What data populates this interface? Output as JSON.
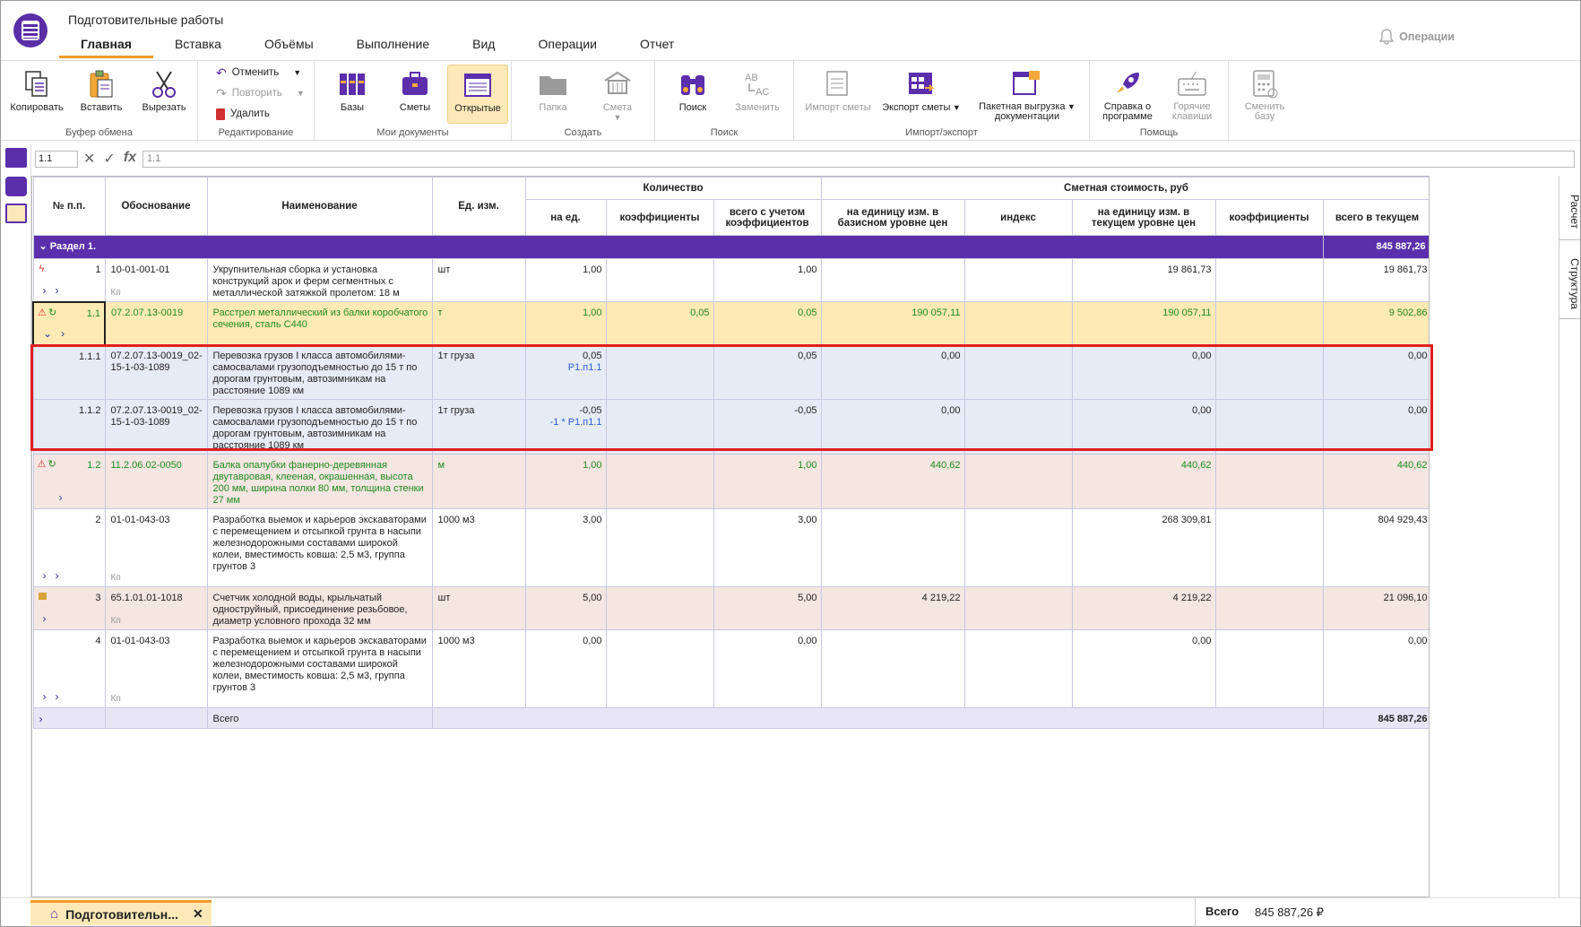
{
  "window": {
    "title": "Подготовительные работы"
  },
  "tabs": [
    "Главная",
    "Вставка",
    "Объёмы",
    "Выполнение",
    "Вид",
    "Операции",
    "Отчет"
  ],
  "operations_label": "Операции",
  "ribbon": {
    "clipboard": {
      "label": "Буфер обмена",
      "copy": "Копировать",
      "paste": "Вставить",
      "cut": "Вырезать"
    },
    "edit": {
      "label": "Редактирование",
      "undo": "Отменить",
      "redo": "Повторить",
      "delete": "Удалить"
    },
    "mydocs": {
      "label": "Мои документы",
      "bases": "Базы",
      "estimates": "Сметы",
      "open": "Открытые"
    },
    "create": {
      "label": "Создать",
      "folder": "Папка",
      "estimate": "Смета"
    },
    "search": {
      "label": "Поиск",
      "find": "Поиск",
      "replace": "Заменить"
    },
    "io": {
      "label": "Импорт/экспорт",
      "import": "Импорт сметы",
      "export": "Экспорт сметы",
      "batch1": "Пакетная выгрузка",
      "batch2": "документации"
    },
    "help": {
      "label": "Помощь",
      "about1": "Справка о",
      "about2": "программе",
      "hot1": "Горячие",
      "hot2": "клавиши"
    },
    "change_base1": "Сменить",
    "change_base2": "базу"
  },
  "formula": {
    "cell": "1.1",
    "value": "1.1"
  },
  "side_tabs": {
    "calc": "Расчет",
    "structure": "Структура"
  },
  "headers": {
    "num": "№ п.п.",
    "basis": "Обоснование",
    "name": "Наименование",
    "unit": "Ед. изм.",
    "qty_group": "Количество",
    "cost_group": "Сметная стоимость, руб",
    "per_unit": "на ед.",
    "coef": "коэффициенты",
    "total_coef": "всего с учетом коэффициентов",
    "base_price": "на единицу изм. в базисном уровне цен",
    "index": "индекс",
    "cur_price": "на единицу изм. в текущем уровне цен",
    "coef2": "коэффициенты",
    "total_cur": "всего в текущем"
  },
  "section": {
    "label": "Раздел 1.",
    "total": "845 887,26"
  },
  "rows": [
    {
      "num": "1",
      "basis": "10-01-001-01",
      "name": "Укрупнительная сборка и установка конструкций арок и ферм сегментных с металлической затяжкой пролетом: 18 м",
      "unit": "шт",
      "per_unit": "1,00",
      "coef": "",
      "total_coef": "1,00",
      "base": "",
      "index": "",
      "cur": "19 861,73",
      "coef2": "",
      "total": "19 861,73"
    },
    {
      "num": "1.1",
      "basis": "07.2.07.13-0019",
      "name": "Расстрел металлический из балки коробчатого сечения, сталь С440",
      "unit": "т",
      "per_unit": "1,00",
      "coef": "0,05",
      "total_coef": "0,05",
      "base": "190 057,11",
      "index": "",
      "cur": "190 057,11",
      "coef2": "",
      "total": "9 502,86"
    },
    {
      "num": "1.1.1",
      "basis": "07.2.07.13-0019_02-15-1-03-1089",
      "name": "Перевозка грузов I класса автомобилями-самосвалами грузоподъемностью до 15 т по дорогам грунтовым, автозимникам на расстояние 1089 км",
      "unit": "1т груза",
      "per_unit": "0,05",
      "per_unit2": "Р1.п1.1",
      "coef": "",
      "total_coef": "0,05",
      "base": "0,00",
      "index": "",
      "cur": "0,00",
      "coef2": "",
      "total": "0,00"
    },
    {
      "num": "1.1.2",
      "basis": "07.2.07.13-0019_02-15-1-03-1089",
      "name": "Перевозка грузов I класса автомобилями-самосвалами грузоподъемностью до 15 т по дорогам грунтовым, автозимникам на расстояние 1089 км",
      "unit": "1т груза",
      "per_unit": "-0,05",
      "per_unit2": "-1 * Р1.п1.1",
      "coef": "",
      "total_coef": "-0,05",
      "base": "0,00",
      "index": "",
      "cur": "0,00",
      "coef2": "",
      "total": "0,00"
    },
    {
      "num": "1.2",
      "basis": "11.2.06.02-0050",
      "name": "Балка опалубки фанерно-деревянная двутавровая, клееная, окрашенная, высота 200 мм, ширина полки 80 мм, толщина стенки 27 мм",
      "unit": "м",
      "per_unit": "1,00",
      "coef": "",
      "total_coef": "1,00",
      "base": "440,62",
      "index": "",
      "cur": "440,62",
      "coef2": "",
      "total": "440,62"
    },
    {
      "num": "2",
      "basis": "01-01-043-03",
      "name": "Разработка выемок и карьеров экскаваторами с перемещением и отсыпкой грунта в насыпи железнодорожными составами широкой колеи, вместимость ковша: 2,5 м3, группа грунтов 3",
      "unit": "1000 м3",
      "per_unit": "3,00",
      "coef": "",
      "total_coef": "3,00",
      "base": "",
      "index": "",
      "cur": "268 309,81",
      "coef2": "",
      "total": "804 929,43"
    },
    {
      "num": "3",
      "basis": "65.1.01.01-1018",
      "name": "Счетчик холодной воды, крыльчатый одноструйный, присоединение резьбовое, диаметр условного прохода 32 мм",
      "unit": "шт",
      "per_unit": "5,00",
      "coef": "",
      "total_coef": "5,00",
      "base": "4 219,22",
      "index": "",
      "cur": "4 219,22",
      "coef2": "",
      "total": "21 096,10"
    },
    {
      "num": "4",
      "basis": "01-01-043-03",
      "name": "Разработка выемок и карьеров экскаваторами с перемещением и отсыпкой грунта в насыпи железнодорожными составами широкой колеи, вместимость ковша: 2,5 м3, группа грунтов 3",
      "unit": "1000 м3",
      "per_unit": "0,00",
      "coef": "",
      "total_coef": "0,00",
      "base": "",
      "index": "",
      "cur": "0,00",
      "coef2": "",
      "total": "0,00"
    }
  ],
  "kp": "Кп",
  "total_row": {
    "label": "Всего",
    "total": "845 887,26"
  },
  "status": {
    "doc_tab": "Подготовительн...",
    "total_label": "Всего",
    "total_value": "845 887,26 ₽"
  },
  "colors": {
    "accent": "#5b2eac",
    "orange": "#f39a2a",
    "selected": "#fdeab5",
    "sub": "#e6ecf5",
    "pink": "#f4e6e1",
    "green": "#1f8a1f"
  }
}
